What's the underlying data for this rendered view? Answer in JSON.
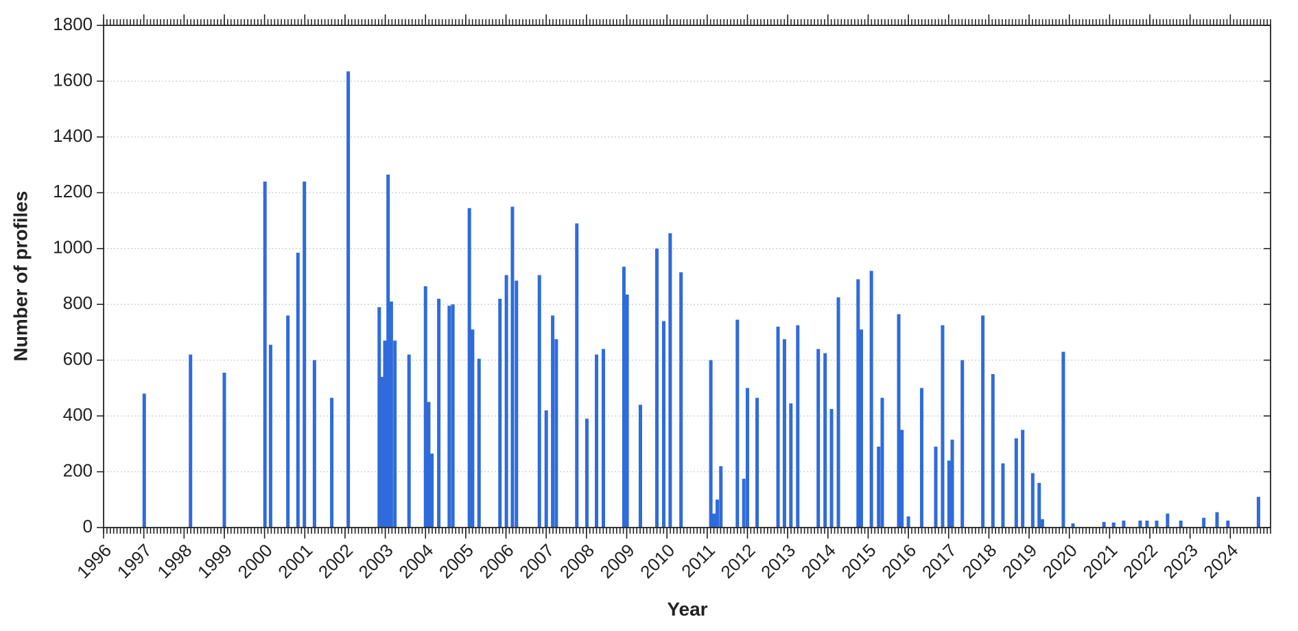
{
  "chart_data": {
    "type": "bar",
    "xlabel": "Year",
    "ylabel": "Number of profiles",
    "color": "#2f6bdb",
    "grid": true,
    "xlim": [
      1996,
      2025
    ],
    "xticks": [
      1996,
      1997,
      1998,
      1999,
      2000,
      2001,
      2002,
      2003,
      2004,
      2005,
      2006,
      2007,
      2008,
      2009,
      2010,
      2011,
      2012,
      2013,
      2014,
      2015,
      2016,
      2017,
      2018,
      2019,
      2020,
      2021,
      2022,
      2023,
      2024
    ],
    "ylim": [
      0,
      1800
    ],
    "yticks": [
      0,
      200,
      400,
      600,
      800,
      1000,
      1200,
      1400,
      1600,
      1800
    ],
    "x": [
      1997.01,
      1998.16,
      1999.0,
      2000.01,
      2000.15,
      2000.58,
      2000.83,
      2000.99,
      2001.24,
      2001.67,
      2002.08,
      2002.85,
      2002.91,
      2002.99,
      2003.07,
      2003.15,
      2003.24,
      2003.59,
      2004.0,
      2004.08,
      2004.16,
      2004.33,
      2004.59,
      2004.68,
      2005.09,
      2005.17,
      2005.33,
      2005.85,
      2006.01,
      2006.16,
      2006.26,
      2006.83,
      2007.0,
      2007.16,
      2007.25,
      2007.76,
      2008.01,
      2008.25,
      2008.42,
      2008.93,
      2009.01,
      2009.34,
      2009.75,
      2009.92,
      2010.08,
      2010.35,
      2011.09,
      2011.17,
      2011.25,
      2011.34,
      2011.75,
      2011.91,
      2012.0,
      2012.24,
      2012.76,
      2012.92,
      2013.08,
      2013.25,
      2013.76,
      2013.93,
      2014.09,
      2014.26,
      2014.75,
      2014.83,
      2015.08,
      2015.26,
      2015.35,
      2015.76,
      2015.84,
      2016.0,
      2016.33,
      2016.68,
      2016.85,
      2017.01,
      2017.09,
      2017.34,
      2017.85,
      2018.1,
      2018.35,
      2018.68,
      2018.84,
      2019.09,
      2019.25,
      2019.33,
      2019.85,
      2020.09,
      2020.86,
      2021.1,
      2021.35,
      2021.76,
      2021.93,
      2022.17,
      2022.44,
      2022.77,
      2023.34,
      2023.67,
      2023.94,
      2024.7
    ],
    "values": [
      480,
      620,
      555,
      1240,
      655,
      760,
      985,
      1240,
      600,
      465,
      1635,
      790,
      540,
      670,
      1265,
      810,
      670,
      620,
      865,
      450,
      265,
      820,
      795,
      800,
      1145,
      710,
      605,
      820,
      905,
      1150,
      885,
      905,
      420,
      760,
      675,
      1090,
      390,
      620,
      640,
      935,
      835,
      440,
      1000,
      740,
      1055,
      915,
      600,
      50,
      100,
      220,
      745,
      175,
      500,
      465,
      720,
      675,
      445,
      725,
      640,
      625,
      425,
      825,
      890,
      710,
      920,
      290,
      465,
      765,
      350,
      40,
      500,
      290,
      725,
      240,
      315,
      600,
      760,
      550,
      230,
      320,
      350,
      195,
      160,
      30,
      630,
      15,
      20,
      18,
      25,
      25,
      25,
      25,
      50,
      25,
      35,
      55,
      25,
      110
    ]
  }
}
